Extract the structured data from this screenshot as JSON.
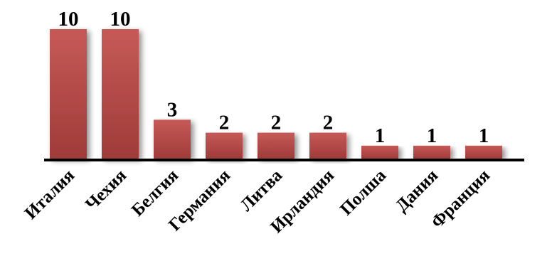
{
  "chart_data": {
    "type": "bar",
    "categories": [
      "Италия",
      "Чехия",
      "Белгия",
      "Германия",
      "Литва",
      "Ирландия",
      "Полша",
      "Дания",
      "Франция"
    ],
    "values": [
      10,
      10,
      3,
      2,
      2,
      2,
      1,
      1,
      1
    ],
    "data_labels": [
      "10",
      "10",
      "3",
      "2",
      "2",
      "2",
      "1",
      "1",
      "1"
    ],
    "title": "",
    "xlabel": "",
    "ylabel": "",
    "ylim": [
      0,
      10
    ],
    "grid": false,
    "legend": "none",
    "colors": {
      "bar": "#c0504d",
      "bar_dark": "#9b3a38",
      "axis": "#000000"
    }
  }
}
